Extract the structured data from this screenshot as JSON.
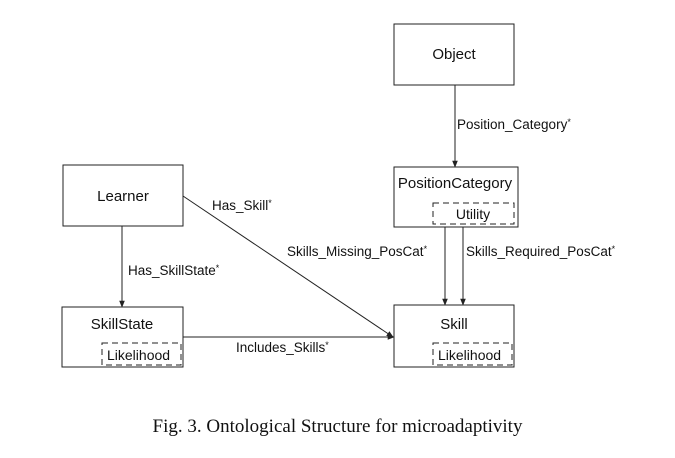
{
  "nodes": {
    "object": {
      "label": "Object"
    },
    "learner": {
      "label": "Learner"
    },
    "position_category": {
      "label": "PositionCategory",
      "attribute": "Utility"
    },
    "skill_state": {
      "label": "SkillState",
      "attribute": "Likelihood"
    },
    "skill": {
      "label": "Skill",
      "attribute": "Likelihood"
    }
  },
  "edges": {
    "position_category": {
      "label": "Position_Category",
      "mark": "*"
    },
    "has_skill": {
      "label": "Has_Skill",
      "mark": "*"
    },
    "skills_missing": {
      "label": "Skills_Missing_PosCat",
      "mark": "*"
    },
    "skills_required": {
      "label": "Skills_Required_PosCat",
      "mark": "*"
    },
    "has_skillstate": {
      "label": "Has_SkillState",
      "mark": "*"
    },
    "includes_skills": {
      "label": "Includes_Skills",
      "mark": "*"
    }
  },
  "caption": "Fig. 3. Ontological Structure for microadaptivity"
}
